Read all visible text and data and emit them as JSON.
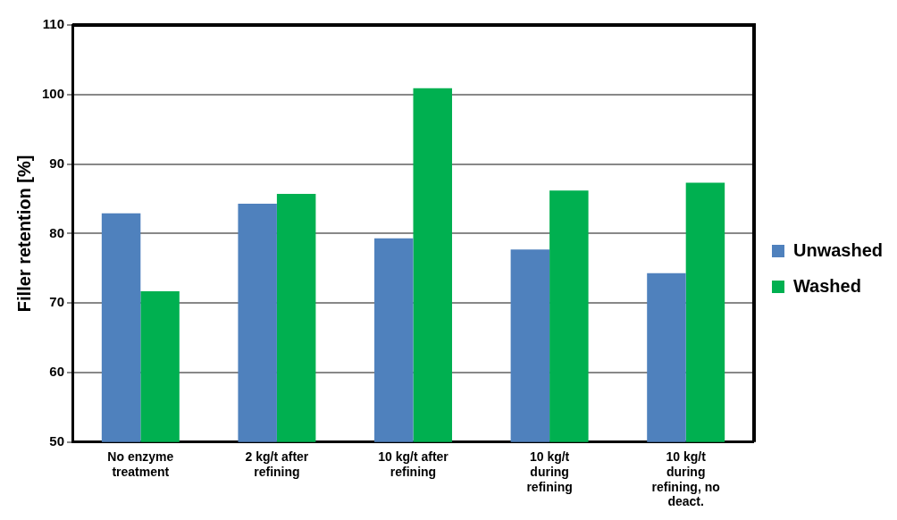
{
  "chart_data": {
    "type": "bar",
    "ylabel": "Filler retention [%]",
    "categories": [
      "No enzyme treatment",
      "2 kg/t after refining",
      "10 kg/t after refining",
      "10 kg/t during refining",
      "10 kg/t during refining, no deact."
    ],
    "series": [
      {
        "name": "Unwashed",
        "color": "#4f81bd",
        "values": [
          82.9,
          84.3,
          79.3,
          77.7,
          74.3
        ]
      },
      {
        "name": "Washed",
        "color": "#00b050",
        "values": [
          71.7,
          85.7,
          100.9,
          86.2,
          87.3
        ]
      }
    ],
    "ylim": [
      50,
      110
    ],
    "yticks": [
      50,
      60,
      70,
      80,
      90,
      100,
      110
    ],
    "grid": "y",
    "legend": "right"
  }
}
